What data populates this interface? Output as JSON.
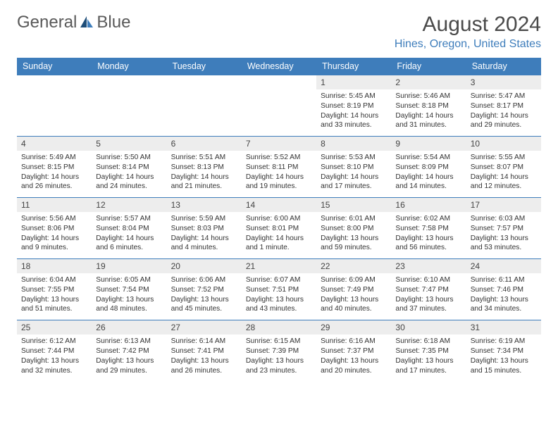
{
  "logo": {
    "text_left": "General",
    "text_right": "Blue"
  },
  "header": {
    "month_title": "August 2024",
    "location": "Hines, Oregon, United States"
  },
  "colors": {
    "brand_blue": "#3E7DBB",
    "header_bg": "#3E7DBB",
    "header_text": "#ffffff",
    "daynum_bg": "#ededed",
    "body_text": "#333333",
    "logo_text": "#595959",
    "background": "#ffffff"
  },
  "day_headers": [
    "Sunday",
    "Monday",
    "Tuesday",
    "Wednesday",
    "Thursday",
    "Friday",
    "Saturday"
  ],
  "weeks": [
    [
      null,
      null,
      null,
      null,
      {
        "num": "1",
        "sunrise": "5:45 AM",
        "sunset": "8:19 PM",
        "daylight": "14 hours and 33 minutes."
      },
      {
        "num": "2",
        "sunrise": "5:46 AM",
        "sunset": "8:18 PM",
        "daylight": "14 hours and 31 minutes."
      },
      {
        "num": "3",
        "sunrise": "5:47 AM",
        "sunset": "8:17 PM",
        "daylight": "14 hours and 29 minutes."
      }
    ],
    [
      {
        "num": "4",
        "sunrise": "5:49 AM",
        "sunset": "8:15 PM",
        "daylight": "14 hours and 26 minutes."
      },
      {
        "num": "5",
        "sunrise": "5:50 AM",
        "sunset": "8:14 PM",
        "daylight": "14 hours and 24 minutes."
      },
      {
        "num": "6",
        "sunrise": "5:51 AM",
        "sunset": "8:13 PM",
        "daylight": "14 hours and 21 minutes."
      },
      {
        "num": "7",
        "sunrise": "5:52 AM",
        "sunset": "8:11 PM",
        "daylight": "14 hours and 19 minutes."
      },
      {
        "num": "8",
        "sunrise": "5:53 AM",
        "sunset": "8:10 PM",
        "daylight": "14 hours and 17 minutes."
      },
      {
        "num": "9",
        "sunrise": "5:54 AM",
        "sunset": "8:09 PM",
        "daylight": "14 hours and 14 minutes."
      },
      {
        "num": "10",
        "sunrise": "5:55 AM",
        "sunset": "8:07 PM",
        "daylight": "14 hours and 12 minutes."
      }
    ],
    [
      {
        "num": "11",
        "sunrise": "5:56 AM",
        "sunset": "8:06 PM",
        "daylight": "14 hours and 9 minutes."
      },
      {
        "num": "12",
        "sunrise": "5:57 AM",
        "sunset": "8:04 PM",
        "daylight": "14 hours and 6 minutes."
      },
      {
        "num": "13",
        "sunrise": "5:59 AM",
        "sunset": "8:03 PM",
        "daylight": "14 hours and 4 minutes."
      },
      {
        "num": "14",
        "sunrise": "6:00 AM",
        "sunset": "8:01 PM",
        "daylight": "14 hours and 1 minute."
      },
      {
        "num": "15",
        "sunrise": "6:01 AM",
        "sunset": "8:00 PM",
        "daylight": "13 hours and 59 minutes."
      },
      {
        "num": "16",
        "sunrise": "6:02 AM",
        "sunset": "7:58 PM",
        "daylight": "13 hours and 56 minutes."
      },
      {
        "num": "17",
        "sunrise": "6:03 AM",
        "sunset": "7:57 PM",
        "daylight": "13 hours and 53 minutes."
      }
    ],
    [
      {
        "num": "18",
        "sunrise": "6:04 AM",
        "sunset": "7:55 PM",
        "daylight": "13 hours and 51 minutes."
      },
      {
        "num": "19",
        "sunrise": "6:05 AM",
        "sunset": "7:54 PM",
        "daylight": "13 hours and 48 minutes."
      },
      {
        "num": "20",
        "sunrise": "6:06 AM",
        "sunset": "7:52 PM",
        "daylight": "13 hours and 45 minutes."
      },
      {
        "num": "21",
        "sunrise": "6:07 AM",
        "sunset": "7:51 PM",
        "daylight": "13 hours and 43 minutes."
      },
      {
        "num": "22",
        "sunrise": "6:09 AM",
        "sunset": "7:49 PM",
        "daylight": "13 hours and 40 minutes."
      },
      {
        "num": "23",
        "sunrise": "6:10 AM",
        "sunset": "7:47 PM",
        "daylight": "13 hours and 37 minutes."
      },
      {
        "num": "24",
        "sunrise": "6:11 AM",
        "sunset": "7:46 PM",
        "daylight": "13 hours and 34 minutes."
      }
    ],
    [
      {
        "num": "25",
        "sunrise": "6:12 AM",
        "sunset": "7:44 PM",
        "daylight": "13 hours and 32 minutes."
      },
      {
        "num": "26",
        "sunrise": "6:13 AM",
        "sunset": "7:42 PM",
        "daylight": "13 hours and 29 minutes."
      },
      {
        "num": "27",
        "sunrise": "6:14 AM",
        "sunset": "7:41 PM",
        "daylight": "13 hours and 26 minutes."
      },
      {
        "num": "28",
        "sunrise": "6:15 AM",
        "sunset": "7:39 PM",
        "daylight": "13 hours and 23 minutes."
      },
      {
        "num": "29",
        "sunrise": "6:16 AM",
        "sunset": "7:37 PM",
        "daylight": "13 hours and 20 minutes."
      },
      {
        "num": "30",
        "sunrise": "6:18 AM",
        "sunset": "7:35 PM",
        "daylight": "13 hours and 17 minutes."
      },
      {
        "num": "31",
        "sunrise": "6:19 AM",
        "sunset": "7:34 PM",
        "daylight": "13 hours and 15 minutes."
      }
    ]
  ],
  "labels": {
    "sunrise_prefix": "Sunrise: ",
    "sunset_prefix": "Sunset: ",
    "daylight_prefix": "Daylight: "
  }
}
